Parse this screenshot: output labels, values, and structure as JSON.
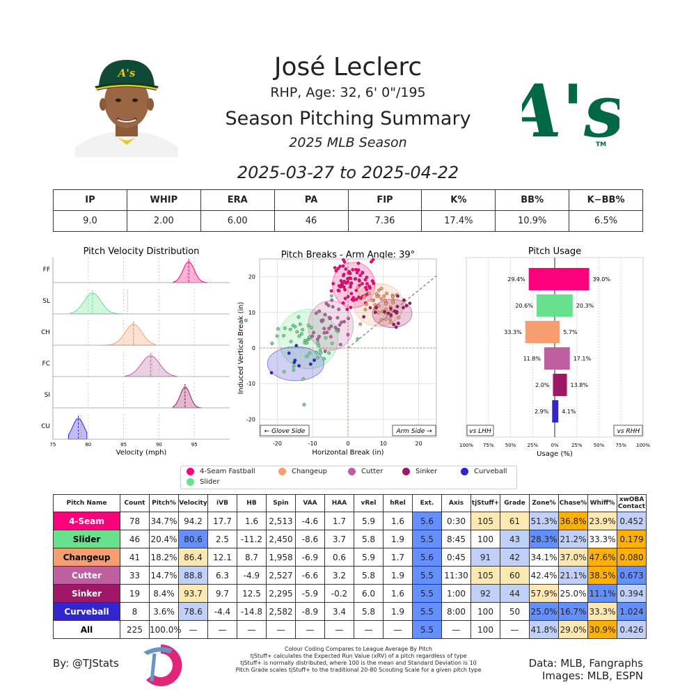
{
  "header": {
    "player_name": "José Leclerc",
    "player_info": "RHP, Age: 32, 6' 0\"/195",
    "report_title": "Season Pitching Summary",
    "season": "2025 MLB Season",
    "date_range": "2025-03-27 to 2025-04-22",
    "team_logo_text": "A's",
    "team_logo_tm": "TM"
  },
  "summary": {
    "headers": [
      "IP",
      "WHIP",
      "ERA",
      "PA",
      "FIP",
      "K%",
      "BB%",
      "K−BB%"
    ],
    "values": [
      "9.0",
      "2.00",
      "6.00",
      "46",
      "7.36",
      "17.4%",
      "10.9%",
      "6.5%"
    ]
  },
  "colors": {
    "4-Seam": "#ff007d",
    "Slider": "#67e18d",
    "Changeup": "#f79e70",
    "Cutter": "#be5fa0",
    "Sinker": "#9f1766",
    "Curveball": "#3025ce",
    "All": "#ffffff",
    "good_strong": "#ffb000",
    "good_light": "#fde8b2",
    "neutral": "#ffffff",
    "bad_light": "#c0d0f8",
    "bad_strong": "#648fff"
  },
  "chart_data": [
    {
      "type": "area",
      "title": "Pitch Velocity Distribution",
      "xlabel": "Velocity (mph)",
      "xlim": [
        75,
        100
      ],
      "xticks": [
        75,
        80,
        85,
        90,
        95
      ],
      "series": [
        {
          "label": "FF",
          "pitch": "4-Seam",
          "mean": 94.2,
          "sd": 0.8,
          "league_avg": 94.3,
          "min": 92,
          "max": 96.8
        },
        {
          "label": "SL",
          "pitch": "Slider",
          "mean": 80.6,
          "sd": 1.2,
          "league_avg": 85.6,
          "min": 77.5,
          "max": 84.8
        },
        {
          "label": "CH",
          "pitch": "Changeup",
          "mean": 86.4,
          "sd": 1.2,
          "league_avg": 86.4,
          "min": 81.7,
          "max": 89.5
        },
        {
          "label": "FC",
          "pitch": "Cutter",
          "mean": 88.8,
          "sd": 1.3,
          "league_avg": 89.0,
          "min": 85.2,
          "max": 92.5
        },
        {
          "label": "SI",
          "pitch": "Sinker",
          "mean": 93.7,
          "sd": 0.7,
          "league_avg": 93.6,
          "min": 92,
          "max": 96
        },
        {
          "label": "CU",
          "pitch": "Curveball",
          "mean": 78.6,
          "sd": 0.8,
          "league_avg": 79.0,
          "min": 77.2,
          "max": 79.8
        }
      ]
    },
    {
      "type": "scatter",
      "title": "Pitch Breaks - Arm Angle: 39°",
      "xlabel": "Horizontal Break (in)",
      "ylabel": "Induced Vertical Break (in)",
      "xlim": [
        -25,
        25
      ],
      "ylim": [
        -25,
        25
      ],
      "ticks": [
        -20,
        -10,
        0,
        10,
        20
      ],
      "arm_angle_deg": 39,
      "annotation_left": "← Glove Side",
      "annotation_right": "Arm Side →",
      "series": [
        {
          "pitch": "4-Seam",
          "count": 78,
          "hb": 1.6,
          "ivb": 17.7,
          "sx": 3.0,
          "sy": 3.2
        },
        {
          "pitch": "Slider",
          "count": 46,
          "hb": -11.2,
          "ivb": 2.5,
          "sx": 4.2,
          "sy": 4.2
        },
        {
          "pitch": "Changeup",
          "count": 41,
          "hb": 8.7,
          "ivb": 12.1,
          "sx": 3.5,
          "sy": 3.0
        },
        {
          "pitch": "Cutter",
          "count": 33,
          "hb": -4.9,
          "ivb": 6.3,
          "sx": 3.2,
          "sy": 3.5
        },
        {
          "pitch": "Sinker",
          "count": 19,
          "hb": 12.5,
          "ivb": 9.7,
          "sx": 2.8,
          "sy": 2.0
        },
        {
          "pitch": "Curveball",
          "count": 8,
          "hb": -14.8,
          "ivb": -4.4,
          "sx": 4.0,
          "sy": 2.4
        }
      ]
    },
    {
      "type": "bar",
      "title": "Pitch Usage",
      "xlabel": "Usage (%)",
      "xlim": [
        -100,
        100
      ],
      "xticks": [
        "100%",
        "75%",
        "50%",
        "25%",
        "0%",
        "25%",
        "50%",
        "75%",
        "100%"
      ],
      "label_left": "vs LHH",
      "label_right": "vs RHH",
      "categories": [
        "4-Seam",
        "Slider",
        "Changeup",
        "Cutter",
        "Sinker",
        "Curveball"
      ],
      "series": [
        {
          "name": "vs LHH",
          "values": [
            29.4,
            20.6,
            33.3,
            11.8,
            2.0,
            2.9
          ]
        },
        {
          "name": "vs RHH",
          "values": [
            39.0,
            20.3,
            5.7,
            17.1,
            13.8,
            4.1
          ]
        }
      ]
    }
  ],
  "legend": [
    {
      "label": "4-Seam Fastball",
      "pitch": "4-Seam"
    },
    {
      "label": "Changeup",
      "pitch": "Changeup"
    },
    {
      "label": "Cutter",
      "pitch": "Cutter"
    },
    {
      "label": "Sinker",
      "pitch": "Sinker"
    },
    {
      "label": "Curveball",
      "pitch": "Curveball"
    },
    {
      "label": "Slider",
      "pitch": "Slider"
    }
  ],
  "pitch_table": {
    "headers": [
      "Pitch Name",
      "Count",
      "Pitch%",
      "Velocity",
      "iVB",
      "HB",
      "Spin",
      "VAA",
      "HAA",
      "vRel",
      "hRel",
      "Ext.",
      "Axis",
      "tjStuff+",
      "Grade",
      "Zone%",
      "Chase%",
      "Whiff%",
      "xwOBA Contact"
    ],
    "rows": [
      {
        "pitch": "4-Seam",
        "cells": [
          "4-Seam",
          "78",
          "34.7%",
          "94.2",
          "17.7",
          "1.6",
          "2,513",
          "-4.6",
          "1.7",
          "5.9",
          "1.6",
          "5.6",
          "0:30",
          "105",
          "61",
          "51.3%",
          "36.8%",
          "23.9%",
          "0.452"
        ],
        "shades": {
          "11": "bad_strong",
          "13": "good_light",
          "14": "good_light",
          "15": "bad_light",
          "16": "good_strong",
          "17": "good_light",
          "18": "bad_light"
        }
      },
      {
        "pitch": "Slider",
        "cells": [
          "Slider",
          "46",
          "20.4%",
          "80.6",
          "2.5",
          "-11.2",
          "2,450",
          "-8.6",
          "3.7",
          "5.8",
          "1.9",
          "5.5",
          "8:45",
          "100",
          "43",
          "28.3%",
          "21.2%",
          "33.3%",
          "0.179"
        ],
        "shades": {
          "3": "bad_strong",
          "11": "bad_strong",
          "14": "bad_light",
          "15": "bad_strong",
          "16": "bad_light",
          "18": "good_strong"
        }
      },
      {
        "pitch": "Changeup",
        "cells": [
          "Changeup",
          "41",
          "18.2%",
          "86.4",
          "12.1",
          "8.7",
          "1,958",
          "-6.9",
          "0.6",
          "5.9",
          "1.7",
          "5.6",
          "0:45",
          "91",
          "42",
          "34.1%",
          "37.0%",
          "47.6%",
          "0.080"
        ],
        "shades": {
          "3": "good_light",
          "11": "bad_strong",
          "13": "bad_light",
          "14": "bad_light",
          "16": "good_light",
          "17": "good_strong",
          "18": "good_strong"
        }
      },
      {
        "pitch": "Cutter",
        "cells": [
          "Cutter",
          "33",
          "14.7%",
          "88.8",
          "6.3",
          "-4.9",
          "2,527",
          "-6.6",
          "3.2",
          "5.8",
          "1.9",
          "5.5",
          "11:30",
          "105",
          "60",
          "42.4%",
          "21.1%",
          "38.5%",
          "0.673"
        ],
        "shades": {
          "3": "bad_light",
          "11": "bad_strong",
          "13": "good_light",
          "14": "good_light",
          "16": "bad_light",
          "17": "good_strong",
          "18": "bad_strong"
        }
      },
      {
        "pitch": "Sinker",
        "cells": [
          "Sinker",
          "19",
          "8.4%",
          "93.7",
          "9.7",
          "12.5",
          "2,295",
          "-5.9",
          "-0.2",
          "6.0",
          "1.6",
          "5.5",
          "1:00",
          "92",
          "44",
          "57.9%",
          "25.0%",
          "11.1%",
          "0.394"
        ],
        "shades": {
          "3": "good_light",
          "11": "bad_strong",
          "13": "bad_light",
          "14": "bad_light",
          "15": "good_light",
          "17": "bad_strong",
          "18": "bad_light"
        }
      },
      {
        "pitch": "Curveball",
        "cells": [
          "Curveball",
          "8",
          "3.6%",
          "78.6",
          "-4.4",
          "-14.8",
          "2,582",
          "-8.9",
          "3.4",
          "5.8",
          "1.9",
          "5.5",
          "8:00",
          "100",
          "50",
          "25.0%",
          "16.7%",
          "33.3%",
          "1.024"
        ],
        "shades": {
          "3": "bad_light",
          "11": "bad_strong",
          "15": "bad_strong",
          "16": "bad_strong",
          "17": "good_light",
          "18": "bad_strong"
        }
      },
      {
        "pitch": "All",
        "cells": [
          "All",
          "225",
          "100.0%",
          "—",
          "—",
          "—",
          "—",
          "—",
          "—",
          "—",
          "—",
          "5.5",
          "—",
          "100",
          "—",
          "41.8%",
          "29.0%",
          "30.9%",
          "0.426"
        ],
        "shades": {
          "11": "bad_strong",
          "15": "bad_light",
          "16": "good_light",
          "17": "good_strong",
          "18": "bad_light"
        }
      }
    ]
  },
  "footer": {
    "by": "By: @TJStats",
    "notes": [
      "Colour Coding Compares to League Average By Pitch",
      "tjStuff+ calculates the Expected Run Value (xRV) of a pitch regardless of type",
      "tjStuff+ is normally distributed, where 100 is the mean and Standard Deviation is 10",
      "Pitch Grade scales tjStuff+ to the traditional 20-80 Scouting Scale for a given pitch type"
    ],
    "data_source": "Data: MLB, Fangraphs",
    "images_source": "Images: MLB, ESPN"
  }
}
